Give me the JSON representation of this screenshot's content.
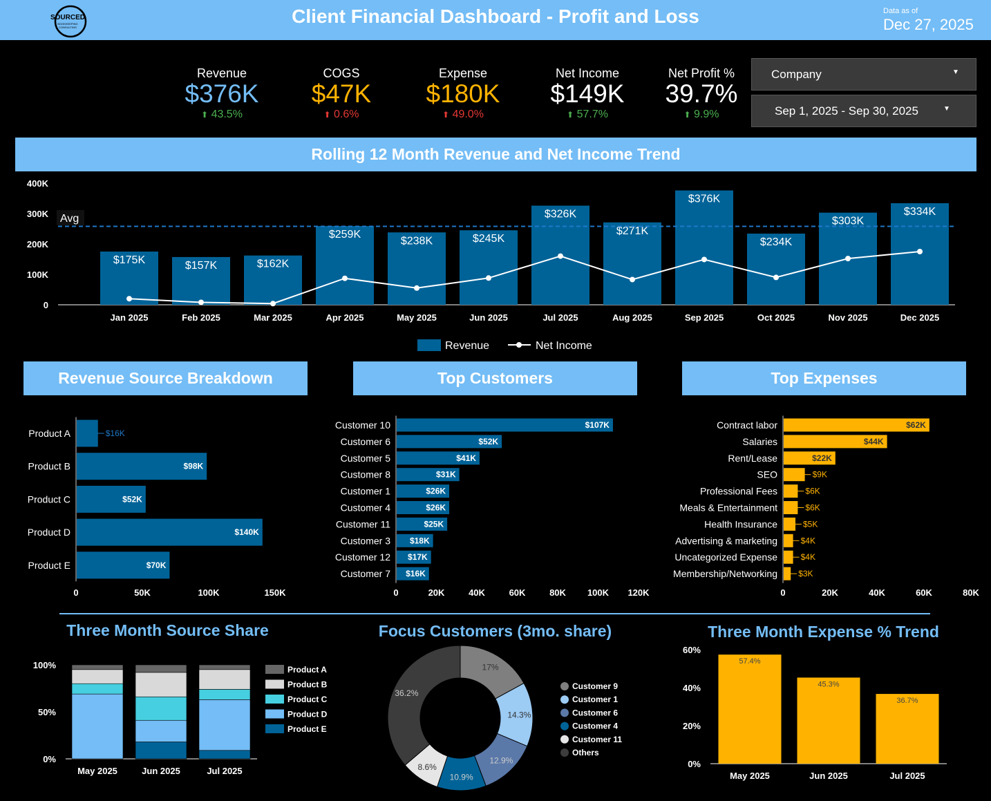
{
  "header": {
    "title": "Client Financial Dashboard - Profit and Loss",
    "logo_text": "SOURCED",
    "logo_sub1": "BOOKKEEPING",
    "logo_sub2": "CONSULTING",
    "data_as_of_label": "Data as of",
    "data_as_of_date": "Dec 27, 2025"
  },
  "colors": {
    "accent": "#74bdf6",
    "revenue": "#006398",
    "expense": "#ffb300",
    "up": "#4caf50",
    "down": "#e53935"
  },
  "kpis": [
    {
      "label": "Revenue",
      "value": "$376K",
      "change": "43.5%",
      "dir": "up",
      "color": "#74bdf6"
    },
    {
      "label": "COGS",
      "value": "$47K",
      "change": "0.6%",
      "dir": "up-bad",
      "color": "#ffb300"
    },
    {
      "label": "Expense",
      "value": "$180K",
      "change": "49.0%",
      "dir": "up-bad",
      "color": "#ffb300"
    },
    {
      "label": "Net Income",
      "value": "$149K",
      "change": "57.7%",
      "dir": "up",
      "color": "#ffffff"
    },
    {
      "label": "Net Profit %",
      "value": "39.7%",
      "change": "9.9%",
      "dir": "up",
      "color": "#ffffff"
    }
  ],
  "controls": {
    "company_label": "Company",
    "date_range": "Sep 1, 2025 - Sep 30, 2025"
  },
  "sections": {
    "trend": "Rolling 12 Month Revenue and Net Income Trend",
    "rev_source": "Revenue Source Breakdown",
    "top_customers": "Top Customers",
    "top_expenses": "Top Expenses",
    "three_month_share": "Three Month Source Share",
    "focus_customers": "Focus Customers (3mo. share)",
    "expense_trend": "Three Month Expense % Trend"
  },
  "chart_data": [
    {
      "id": "trend",
      "type": "bar",
      "categories": [
        "Jan 2025",
        "Feb 2025",
        "Mar 2025",
        "Apr 2025",
        "May 2025",
        "Jun 2025",
        "Jul 2025",
        "Aug 2025",
        "Sep 2025",
        "Oct 2025",
        "Nov 2025",
        "Dec 2025"
      ],
      "series": [
        {
          "name": "Revenue",
          "type": "bar",
          "values": [
            175,
            157,
            162,
            259,
            238,
            245,
            326,
            271,
            376,
            234,
            303,
            334
          ],
          "labels": [
            "$175K",
            "$157K",
            "$162K",
            "$259K",
            "$238K",
            "$245K",
            "$326K",
            "$271K",
            "$376K",
            "$234K",
            "$303K",
            "$334K"
          ]
        },
        {
          "name": "Net Income",
          "type": "line",
          "values": [
            20,
            8,
            4,
            87,
            55,
            88,
            160,
            83,
            149,
            90,
            152,
            175
          ]
        }
      ],
      "average": 258,
      "avg_label": "Avg",
      "ylim": [
        0,
        400
      ],
      "yticks": [
        0,
        100,
        200,
        300,
        400
      ],
      "ytick_labels": [
        "0",
        "100K",
        "200K",
        "300K",
        "400K"
      ],
      "legend": [
        "Revenue",
        "Net Income"
      ]
    },
    {
      "id": "rev_source",
      "type": "bar",
      "orientation": "horizontal",
      "categories": [
        "Product A",
        "Product B",
        "Product C",
        "Product D",
        "Product E"
      ],
      "values": [
        16,
        98,
        52,
        140,
        70
      ],
      "labels": [
        "$16K",
        "$98K",
        "$52K",
        "$140K",
        "$70K"
      ],
      "xlim": [
        0,
        150
      ],
      "xticks": [
        0,
        50,
        100,
        150
      ],
      "xtick_labels": [
        "0",
        "50K",
        "100K",
        "150K"
      ]
    },
    {
      "id": "top_customers",
      "type": "bar",
      "orientation": "horizontal",
      "categories": [
        "Customer 10",
        "Customer 6",
        "Customer 5",
        "Customer 8",
        "Customer 1",
        "Customer 4",
        "Customer 11",
        "Customer 3",
        "Customer 12",
        "Customer 7"
      ],
      "values": [
        107,
        52,
        41,
        31,
        26,
        26,
        25,
        18,
        17,
        16
      ],
      "labels": [
        "$107K",
        "$52K",
        "$41K",
        "$31K",
        "$26K",
        "$26K",
        "$25K",
        "$18K",
        "$17K",
        "$16K"
      ],
      "xlim": [
        0,
        120
      ],
      "xticks": [
        0,
        20,
        40,
        60,
        80,
        100,
        120
      ],
      "xtick_labels": [
        "0",
        "20K",
        "40K",
        "60K",
        "80K",
        "100K",
        "120K"
      ]
    },
    {
      "id": "top_expenses",
      "type": "bar",
      "orientation": "horizontal",
      "categories": [
        "Contract labor",
        "Salaries",
        "Rent/Lease",
        "SEO",
        "Professional Fees",
        "Meals & Entertainment",
        "Health Insurance",
        "Advertising & marketing",
        "Uncategorized Expense",
        "Membership/Networking"
      ],
      "values": [
        62,
        44,
        22,
        9,
        6,
        6,
        5,
        4,
        4,
        3
      ],
      "labels": [
        "$62K",
        "$44K",
        "$22K",
        "$9K",
        "$6K",
        "$6K",
        "$5K",
        "$4K",
        "$4K",
        "$3K"
      ],
      "xlim": [
        0,
        80
      ],
      "xticks": [
        0,
        20,
        40,
        60,
        80
      ],
      "xtick_labels": [
        "0",
        "20K",
        "40K",
        "60K",
        "80K"
      ]
    },
    {
      "id": "three_month_share",
      "type": "bar",
      "stacked": true,
      "categories": [
        "May 2025",
        "Jun 2025",
        "Jul 2025"
      ],
      "series": [
        {
          "name": "Product E",
          "color": "#006398",
          "values": [
            0,
            18,
            9
          ]
        },
        {
          "name": "Product D",
          "color": "#74bdf6",
          "values": [
            69,
            23,
            54
          ]
        },
        {
          "name": "Product C",
          "color": "#46cfe0",
          "values": [
            11,
            25,
            11
          ]
        },
        {
          "name": "Product B",
          "color": "#d9d9d9",
          "values": [
            15,
            26,
            21
          ]
        },
        {
          "name": "Product A",
          "color": "#666666",
          "values": [
            5,
            8,
            5
          ]
        }
      ],
      "legend_order": [
        "Product A",
        "Product B",
        "Product C",
        "Product D",
        "Product E"
      ],
      "ylim": [
        0,
        100
      ],
      "ytick_labels": [
        "0%",
        "50%",
        "100%"
      ]
    },
    {
      "id": "focus_customers",
      "type": "pie",
      "donut": true,
      "slices": [
        {
          "name": "Customer 9",
          "value": 17,
          "label": "17%",
          "color": "#7f7f7f"
        },
        {
          "name": "Customer 1",
          "value": 14.3,
          "label": "14.3%",
          "color": "#9ccbf4"
        },
        {
          "name": "Customer 6",
          "value": 12.9,
          "label": "12.9%",
          "color": "#5a78a8"
        },
        {
          "name": "Customer 4",
          "value": 10.9,
          "label": "10.9%",
          "color": "#006398"
        },
        {
          "name": "Customer 11",
          "value": 8.6,
          "label": "8.6%",
          "color": "#e6e6e6"
        },
        {
          "name": "Others",
          "value": 36.2,
          "label": "36.2%",
          "color": "#3c3c3c"
        }
      ]
    },
    {
      "id": "expense_trend",
      "type": "bar",
      "categories": [
        "May 2025",
        "Jun 2025",
        "Jul 2025"
      ],
      "values": [
        57.4,
        45.3,
        36.7
      ],
      "labels": [
        "57.4%",
        "45.3%",
        "36.7%"
      ],
      "ylim": [
        0,
        60
      ],
      "yticks": [
        0,
        20,
        40,
        60
      ],
      "ytick_labels": [
        "0%",
        "20%",
        "40%",
        "60%"
      ]
    }
  ]
}
